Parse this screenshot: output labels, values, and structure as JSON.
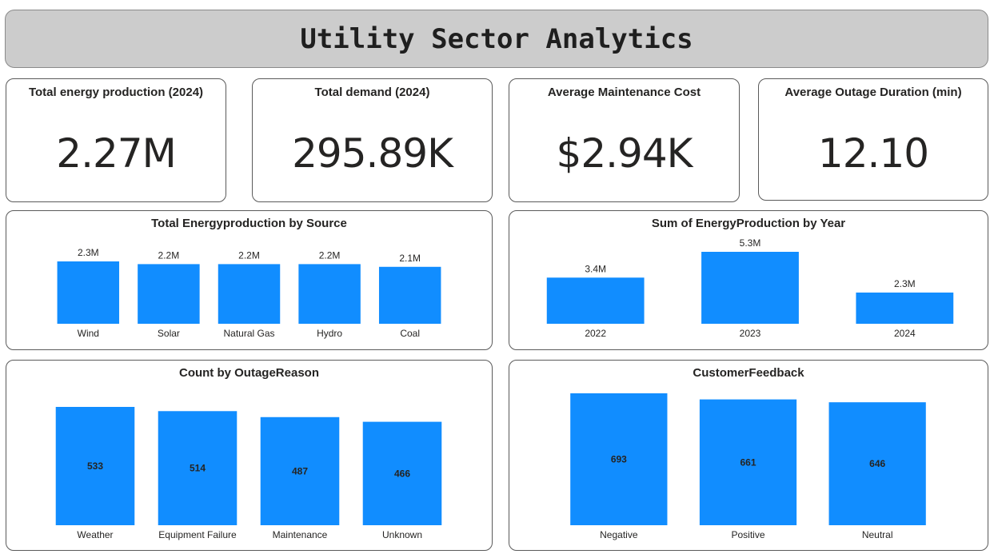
{
  "header": {
    "title": "Utility Sector Analytics"
  },
  "kpis": [
    {
      "title": "Total energy production (2024)",
      "value": "2.27M"
    },
    {
      "title": "Total demand (2024)",
      "value": "295.89K"
    },
    {
      "title": "Average Maintenance Cost",
      "value": "$2.94K"
    },
    {
      "title": "Average Outage Duration (min)",
      "value": "12.10"
    }
  ],
  "colors": {
    "bar": "#118dff",
    "text": "#252423"
  },
  "chart_data": [
    {
      "id": "by_source",
      "type": "bar",
      "title": "Total Energyproduction by Source",
      "categories": [
        "Wind",
        "Solar",
        "Natural Gas",
        "Hydro",
        "Coal"
      ],
      "values": [
        2.3,
        2.2,
        2.2,
        2.2,
        2.1
      ],
      "labels": [
        "2.3M",
        "2.2M",
        "2.2M",
        "2.2M",
        "2.1M"
      ],
      "label_position": "above",
      "ylim": [
        0,
        2.3
      ],
      "grid": false
    },
    {
      "id": "by_year",
      "type": "bar",
      "title": "Sum of EnergyProduction by Year",
      "categories": [
        "2022",
        "2023",
        "2024"
      ],
      "values": [
        3.4,
        5.3,
        2.3
      ],
      "labels": [
        "3.4M",
        "5.3M",
        "2.3M"
      ],
      "label_position": "above",
      "ylim": [
        0,
        5.3
      ],
      "grid": false
    },
    {
      "id": "by_outage",
      "type": "bar",
      "title": "Count by OutageReason",
      "categories": [
        "Weather",
        "Equipment Failure",
        "Maintenance",
        "Unknown"
      ],
      "values": [
        533,
        514,
        487,
        466
      ],
      "labels": [
        "533",
        "514",
        "487",
        "466"
      ],
      "label_position": "inside",
      "ylim": [
        0,
        533
      ],
      "grid": false
    },
    {
      "id": "by_feedback",
      "type": "bar",
      "title": "CustomerFeedback",
      "categories": [
        "Negative",
        "Positive",
        "Neutral"
      ],
      "values": [
        693,
        661,
        646
      ],
      "labels": [
        "693",
        "661",
        "646"
      ],
      "label_position": "inside",
      "ylim": [
        0,
        693
      ],
      "grid": false
    }
  ]
}
